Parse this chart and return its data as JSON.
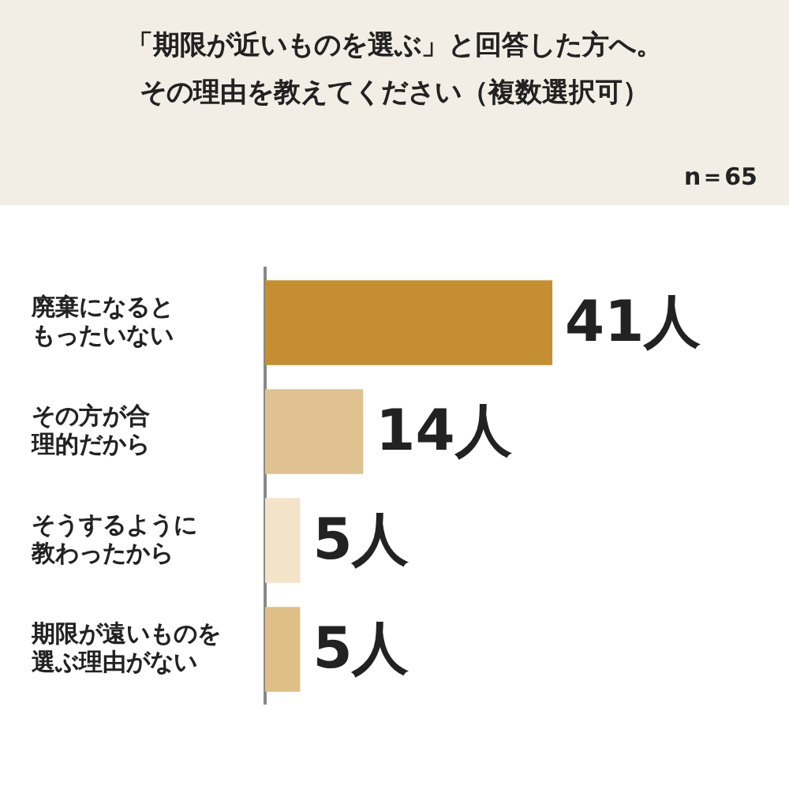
{
  "chart_data": {
    "type": "bar",
    "orientation": "horizontal",
    "title": "「期限が近いものを選ぶ」と回答した方へ。その理由を教えてください（複数選択可）",
    "annotations": [
      "n＝65"
    ],
    "categories": [
      "廃棄になるともったいない",
      "その方が合理的だから",
      "そうするように教わったから",
      "期限が遠いものを選ぶ理由がない"
    ],
    "values": [
      41,
      14,
      5,
      5
    ],
    "colors": [
      "#c58f31",
      "#e0c290",
      "#f3e4c9",
      "#dfbf85"
    ],
    "value_labels": [
      "41人",
      "14人",
      "5人",
      "5人"
    ],
    "grid": false,
    "legend": false
  }
}
